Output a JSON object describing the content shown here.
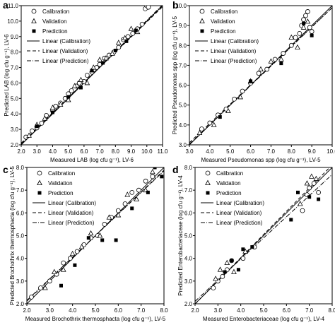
{
  "chart_data": [
    {
      "type": "scatter",
      "panel_label": "a",
      "xlabel": "Measured LAB (log cfu g-1), LV-6",
      "ylabel": "Predicted LAB (log cfu g-1), LV-6",
      "xlim": [
        2.0,
        11.0
      ],
      "ylim": [
        2.0,
        11.0
      ],
      "xticks": [
        "2.0",
        "3.0",
        "4.0",
        "5.0",
        "6.0",
        "7.0",
        "8.0",
        "9.0",
        "10.0",
        "11.0"
      ],
      "yticks": [
        "2.0",
        "3.0",
        "4.0",
        "5.0",
        "6.0",
        "7.0",
        "8.0",
        "9.0",
        "10.0",
        "11.0"
      ],
      "legend": [
        "Calibration",
        "Validation",
        "Prediction",
        "Linear (Calibration)",
        "Linear (Validation)",
        "Linear (Prediction)"
      ],
      "legend_position": "top-left",
      "series": [
        {
          "name": "Calibration",
          "marker": "open-circle",
          "x": [
            2.3,
            2.7,
            3.0,
            3.3,
            3.6,
            4.0,
            4.2,
            4.5,
            4.8,
            5.0,
            5.2,
            5.5,
            5.7,
            6.0,
            6.2,
            6.5,
            6.8,
            7.0,
            7.3,
            7.6,
            7.9,
            8.2,
            8.5,
            8.8,
            9.1,
            9.4,
            9.7,
            9.9,
            10.0,
            10.1
          ],
          "y": [
            2.5,
            2.9,
            3.1,
            3.4,
            3.9,
            4.2,
            4.5,
            4.7,
            5.0,
            5.3,
            5.5,
            5.8,
            6.0,
            6.1,
            6.5,
            6.7,
            7.0,
            7.2,
            7.6,
            7.8,
            8.0,
            8.3,
            8.8,
            9.0,
            9.2,
            9.5,
            9.8,
            10.8,
            11.0,
            10.9
          ]
        },
        {
          "name": "Validation",
          "marker": "open-triangle",
          "x": [
            2.5,
            3.0,
            3.5,
            4.0,
            4.5,
            5.0,
            5.4,
            5.8,
            6.2,
            6.6,
            7.0,
            7.4,
            7.8,
            8.2,
            8.6,
            9.0,
            9.4
          ],
          "y": [
            2.6,
            3.3,
            3.7,
            4.4,
            4.6,
            4.9,
            5.8,
            6.2,
            6.0,
            7.0,
            7.5,
            7.6,
            7.9,
            8.6,
            8.9,
            9.5,
            9.3
          ]
        },
        {
          "name": "Prediction",
          "marker": "filled-square",
          "x": [
            3.0,
            4.0,
            5.0,
            5.8,
            6.5,
            7.2,
            8.0,
            8.7,
            9.3
          ],
          "y": [
            3.2,
            4.1,
            5.1,
            5.7,
            6.8,
            7.3,
            8.1,
            8.7,
            9.4
          ]
        }
      ],
      "fit_lines": [
        {
          "name": "Linear (Calibration)",
          "style": "solid",
          "slope": 1.0,
          "intercept": 0.0
        },
        {
          "name": "Linear (Validation)",
          "style": "dashed",
          "slope": 0.98,
          "intercept": 0.15
        },
        {
          "name": "Linear (Prediction)",
          "style": "dash-dot",
          "slope": 1.0,
          "intercept": 0.05
        }
      ]
    },
    {
      "type": "scatter",
      "panel_label": "b",
      "xlabel": "Measured Pseudomonas spp (log cfu g-1), LV-5",
      "ylabel": "Predicted Pseudomonas spp (log cfu g-1), LV-5",
      "xlim": [
        3.0,
        10.0
      ],
      "ylim": [
        3.0,
        10.0
      ],
      "xticks": [
        "3.0",
        "4.0",
        "5.0",
        "6.0",
        "7.0",
        "8.0",
        "9.0",
        "10.0"
      ],
      "yticks": [
        "3.0",
        "4.0",
        "5.0",
        "6.0",
        "7.0",
        "8.0",
        "9.0",
        "10.0"
      ],
      "legend": [
        "Calibration",
        "Validation",
        "Prediction",
        "Linear (Calibration)",
        "Linear (Validation)",
        "Linear (Prediction)"
      ],
      "legend_position": "top-left",
      "series": [
        {
          "name": "Calibration",
          "marker": "open-circle",
          "x": [
            3.6,
            4.0,
            4.4,
            4.8,
            5.2,
            5.6,
            6.0,
            6.4,
            6.8,
            7.2,
            7.6,
            8.0,
            8.2,
            8.4,
            8.5,
            8.6,
            8.7,
            8.8,
            8.9,
            9.0
          ],
          "y": [
            3.8,
            4.1,
            4.5,
            4.8,
            5.3,
            5.7,
            6.1,
            6.6,
            6.8,
            7.3,
            7.6,
            8.0,
            8.4,
            8.6,
            9.0,
            9.3,
            9.5,
            9.7,
            8.9,
            8.7
          ]
        },
        {
          "name": "Validation",
          "marker": "open-triangle",
          "x": [
            3.5,
            4.2,
            4.9,
            5.5,
            6.0,
            6.5,
            7.0,
            7.5,
            8.0,
            8.3,
            8.6,
            8.8
          ],
          "y": [
            3.6,
            4.0,
            4.7,
            5.4,
            6.2,
            6.8,
            7.2,
            7.3,
            8.4,
            7.9,
            8.9,
            9.2
          ]
        },
        {
          "name": "Prediction",
          "marker": "filled-square",
          "x": [
            4.5,
            6.0,
            7.5,
            8.6,
            9.0
          ],
          "y": [
            4.4,
            6.2,
            7.1,
            9.1,
            8.5
          ]
        }
      ],
      "fit_lines": [
        {
          "name": "Linear (Calibration)",
          "style": "solid",
          "slope": 1.0,
          "intercept": 0.0
        },
        {
          "name": "Linear (Validation)",
          "style": "dashed",
          "slope": 0.97,
          "intercept": 0.2
        },
        {
          "name": "Linear (Prediction)",
          "style": "dash-dot",
          "slope": 0.98,
          "intercept": 0.1
        }
      ]
    },
    {
      "type": "scatter",
      "panel_label": "c",
      "xlabel": "Measured Brochothrix thermosphacta (log cfu g-1), LV-5",
      "ylabel": "Predicted Brochothrix thermosphacta (log cfu g-1), LV-5",
      "xlim": [
        2.0,
        8.0
      ],
      "ylim": [
        2.0,
        8.0
      ],
      "xticks": [
        "2.0",
        "3.0",
        "4.0",
        "5.0",
        "6.0",
        "7.0",
        "8.0"
      ],
      "yticks": [
        "2.0",
        "3.0",
        "4.0",
        "5.0",
        "6.0",
        "7.0",
        "8.0"
      ],
      "legend": [
        "Calibration",
        "Validation",
        "Prediction",
        "Linear (Calibration)",
        "Linear (Validation)",
        "Linear (Prediction)"
      ],
      "legend_position": "top-left",
      "series": [
        {
          "name": "Calibration",
          "marker": "open-circle",
          "x": [
            2.2,
            2.6,
            3.0,
            3.3,
            3.6,
            3.9,
            4.2,
            4.5,
            4.8,
            5.1,
            5.4,
            5.7,
            6.0,
            6.3,
            6.6,
            6.9,
            7.2,
            7.5
          ],
          "y": [
            2.3,
            2.7,
            3.0,
            3.3,
            3.8,
            4.0,
            4.3,
            4.6,
            4.9,
            5.0,
            5.5,
            5.8,
            6.1,
            6.4,
            6.9,
            7.0,
            7.4,
            7.6
          ]
        },
        {
          "name": "Validation",
          "marker": "open-triangle",
          "x": [
            2.8,
            3.2,
            3.6,
            4.0,
            4.4,
            4.8,
            5.2,
            5.6,
            6.0,
            6.4,
            6.8,
            7.2,
            7.5
          ],
          "y": [
            2.7,
            3.4,
            3.5,
            4.2,
            4.5,
            5.1,
            5.0,
            5.8,
            5.9,
            6.8,
            6.6,
            7.0,
            7.8
          ]
        },
        {
          "name": "Prediction",
          "marker": "filled-square",
          "x": [
            3.5,
            4.1,
            4.7,
            5.3,
            5.9,
            6.6,
            7.3,
            7.6,
            7.9
          ],
          "y": [
            2.8,
            3.7,
            4.9,
            4.8,
            4.8,
            6.2,
            6.9,
            8.0,
            7.6
          ]
        }
      ],
      "fit_lines": [
        {
          "name": "Linear (Calibration)",
          "style": "solid",
          "slope": 1.0,
          "intercept": 0.0
        },
        {
          "name": "Linear (Validation)",
          "style": "dashed",
          "slope": 0.96,
          "intercept": 0.2
        },
        {
          "name": "Linear (Prediction)",
          "style": "dash-dot",
          "slope": 0.95,
          "intercept": 0.25
        }
      ]
    },
    {
      "type": "scatter",
      "panel_label": "d",
      "xlabel": "Measured Enterobacteriaceae (log cfu g-1), LV-4",
      "ylabel": "Predicted Enterobacteriaceae (log cfu g-1), LV-4",
      "xlim": [
        2.0,
        8.0
      ],
      "ylim": [
        2.0,
        8.0
      ],
      "xticks": [
        "2.0",
        "3.0",
        "4.0",
        "5.0",
        "6.0",
        "7.0",
        "8.0"
      ],
      "yticks": [
        "2.0",
        "3.0",
        "4.0",
        "5.0",
        "6.0",
        "7.0",
        "8.0"
      ],
      "legend": [
        "Calibration",
        "Validation",
        "Prediction",
        "Linear (Calibration)",
        "Linear (Validation)",
        "Linear (Prediction)"
      ],
      "legend_position": "top-left",
      "series": [
        {
          "name": "Calibration",
          "marker": "open-circle",
          "x": [
            2.8,
            3.0,
            3.2,
            3.4,
            3.6,
            4.1,
            4.6,
            6.7,
            6.9,
            7.0,
            7.2,
            7.4
          ],
          "y": [
            2.7,
            3.0,
            3.2,
            3.5,
            3.9,
            4.0,
            4.5,
            6.1,
            6.8,
            7.1,
            7.3,
            6.9
          ]
        },
        {
          "name": "Validation",
          "marker": "open-triangle",
          "x": [
            2.9,
            3.1,
            3.4,
            3.7,
            4.2,
            6.6,
            6.9,
            7.1,
            7.3
          ],
          "y": [
            3.1,
            3.5,
            3.8,
            3.4,
            4.3,
            6.4,
            7.3,
            7.6,
            7.5
          ]
        },
        {
          "name": "Prediction",
          "marker": "filled-square",
          "x": [
            3.3,
            3.6,
            3.9,
            4.1,
            4.5,
            6.2,
            6.5,
            7.0,
            7.4
          ],
          "y": [
            3.4,
            3.9,
            3.5,
            4.4,
            4.5,
            5.7,
            6.9,
            6.7,
            6.6
          ]
        }
      ],
      "fit_lines": [
        {
          "name": "Linear (Calibration)",
          "style": "solid",
          "slope": 1.0,
          "intercept": 0.0
        },
        {
          "name": "Linear (Validation)",
          "style": "dashed",
          "slope": 1.02,
          "intercept": -0.05
        },
        {
          "name": "Linear (Prediction)",
          "style": "dash-dot",
          "slope": 0.93,
          "intercept": 0.25
        }
      ]
    }
  ]
}
